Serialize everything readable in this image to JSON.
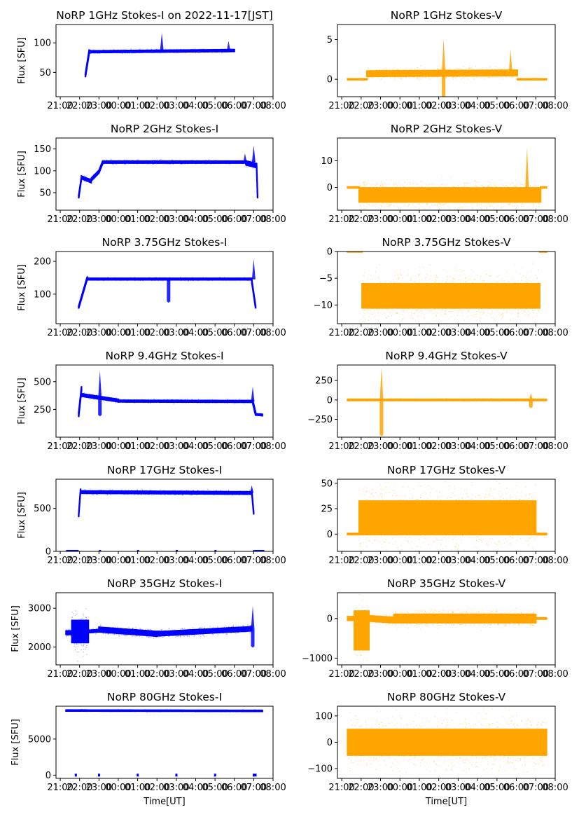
{
  "figure": {
    "x_tick_labels": [
      "21:00",
      "22:00",
      "23:00",
      "00:00",
      "01:00",
      "02:00",
      "03:00",
      "04:00",
      "05:00",
      "06:00",
      "07:00",
      "08:00"
    ],
    "x_label": "Time[UT]",
    "y_label": "Flux [SFU]",
    "colors": {
      "stokes_i": "#0000ff",
      "stokes_v": "#ffa500",
      "axes": "#000000"
    }
  },
  "chart_data": [
    {
      "type": "scatter",
      "title": "NoRP 1GHz Stokes-I on 2022-11-17[JST]",
      "ylabel": "Flux [SFU]",
      "xlabel": "",
      "color": "#0000ff",
      "xlim_hours": [
        -3.22,
        8
      ],
      "ylim": [
        9,
        131
      ],
      "yticks": [
        50,
        100
      ],
      "envelopes": [
        {
          "x0": -1.7,
          "x1": -1.5,
          "y0": 45,
          "y1": 86,
          "spread": 4
        },
        {
          "x0": -1.5,
          "x1": 6.0,
          "y0": 85,
          "y1": 87,
          "spread": 2
        }
      ],
      "spikes": [
        {
          "x": 2.25,
          "peak": 117,
          "base": 87
        },
        {
          "x": 5.7,
          "peak": 103,
          "base": 87
        }
      ]
    },
    {
      "type": "scatter",
      "title": "NoRP 1GHz Stokes-V",
      "ylabel": "",
      "xlabel": "",
      "color": "#ffa500",
      "xlim_hours": [
        -3.22,
        8
      ],
      "ylim": [
        -2.2,
        6.9
      ],
      "yticks": [
        0,
        5
      ],
      "envelopes": [
        {
          "x0": -2.7,
          "x1": -1.7,
          "y0": 0,
          "y1": 0,
          "spread": 0.08
        },
        {
          "x0": -1.7,
          "x1": 6.05,
          "y0": 0.7,
          "y1": 0.8,
          "spread": 0.45
        },
        {
          "x0": 6.05,
          "x1": 7.55,
          "y0": 0,
          "y1": 0,
          "spread": 0.08
        }
      ],
      "spikes": [
        {
          "x": 2.25,
          "peak": 5.2,
          "base": 0.8,
          "low": -2.2
        },
        {
          "x": 5.7,
          "peak": 3.8,
          "base": 0.8
        }
      ]
    },
    {
      "type": "scatter",
      "title": "NoRP 2GHz Stokes-I",
      "ylabel": "Flux [SFU]",
      "xlabel": "",
      "color": "#0000ff",
      "xlim_hours": [
        -3.22,
        8
      ],
      "ylim": [
        10,
        175
      ],
      "yticks": [
        50,
        100,
        150
      ],
      "envelopes": [
        {
          "x0": -2.05,
          "x1": -1.9,
          "y0": 40,
          "y1": 85,
          "spread": 4
        },
        {
          "x0": -1.9,
          "x1": -1.4,
          "y0": 85,
          "y1": 76,
          "spread": 4
        },
        {
          "x0": -1.4,
          "x1": -1.0,
          "y0": 80,
          "y1": 98,
          "spread": 4
        },
        {
          "x0": -1.0,
          "x1": -0.8,
          "y0": 98,
          "y1": 120,
          "spread": 4
        },
        {
          "x0": -0.8,
          "x1": 6.6,
          "y0": 120,
          "y1": 120,
          "spread": 3
        },
        {
          "x0": 6.6,
          "x1": 7.15,
          "y0": 118,
          "y1": 112,
          "spread": 6
        },
        {
          "x0": 7.15,
          "x1": 7.2,
          "y0": 110,
          "y1": 40,
          "spread": 4
        }
      ],
      "spikes": [
        {
          "x": 6.55,
          "peak": 140,
          "base": 120
        },
        {
          "x": 7.0,
          "peak": 158,
          "base": 120
        }
      ]
    },
    {
      "type": "scatter",
      "title": "NoRP 2GHz Stokes-V",
      "ylabel": "",
      "xlabel": "",
      "color": "#ffa500",
      "xlim_hours": [
        -3.22,
        8
      ],
      "ylim": [
        -8.5,
        18.5
      ],
      "yticks": [
        0,
        10
      ],
      "envelopes": [
        {
          "x0": -2.7,
          "x1": -2.1,
          "y0": 0,
          "y1": 0,
          "spread": 0.25
        },
        {
          "x0": -2.1,
          "x1": 7.25,
          "y0": -2.8,
          "y1": -2.8,
          "spread": 3.5
        },
        {
          "x0": 7.25,
          "x1": 7.55,
          "y0": 0,
          "y1": 0,
          "spread": 0.25
        }
      ],
      "spikes": [
        {
          "x": 6.55,
          "peak": 15,
          "base": 0
        }
      ]
    },
    {
      "type": "scatter",
      "title": "NoRP 3.75GHz Stokes-I",
      "ylabel": "Flux [SFU]",
      "xlabel": "",
      "color": "#0000ff",
      "xlim_hours": [
        -3.22,
        8
      ],
      "ylim": [
        10,
        230
      ],
      "yticks": [
        100,
        200
      ],
      "envelopes": [
        {
          "x0": -2.05,
          "x1": -1.6,
          "y0": 60,
          "y1": 150,
          "spread": 5
        },
        {
          "x0": -1.6,
          "x1": 6.9,
          "y0": 146,
          "y1": 146,
          "spread": 3
        },
        {
          "x0": 6.9,
          "x1": 7.1,
          "y0": 140,
          "y1": 60,
          "spread": 5
        }
      ],
      "spikes": [
        {
          "x": 2.6,
          "peak": 145,
          "base": 145,
          "low": 78
        },
        {
          "x": 7.0,
          "peak": 207,
          "base": 145
        }
      ]
    },
    {
      "type": "scatter",
      "title": "NoRP 3.75GHz Stokes-V",
      "ylabel": "",
      "xlabel": "",
      "color": "#ffa500",
      "xlim_hours": [
        -3.22,
        8
      ],
      "ylim": [
        -13.5,
        0
      ],
      "yticks": [
        -10,
        -5,
        0
      ],
      "envelopes": [
        {
          "x0": -2.7,
          "x1": -1.95,
          "y0": 0,
          "y1": 0,
          "spread": 0.12
        },
        {
          "x0": -1.95,
          "x1": 7.2,
          "y0": -8.3,
          "y1": -8.3,
          "spread": 3.0
        },
        {
          "x0": 7.2,
          "x1": 7.55,
          "y0": 0,
          "y1": 0,
          "spread": 0.12
        }
      ],
      "spikes": []
    },
    {
      "type": "scatter",
      "title": "NoRP 9.4GHz Stokes-I",
      "ylabel": "Flux [SFU]",
      "xlabel": "",
      "color": "#0000ff",
      "xlim_hours": [
        -3.22,
        8
      ],
      "ylim": [
        0,
        650
      ],
      "yticks": [
        250,
        500
      ],
      "envelopes": [
        {
          "x0": -2.05,
          "x1": -1.9,
          "y0": 200,
          "y1": 440,
          "spread": 25
        },
        {
          "x0": -1.9,
          "x1": 0.0,
          "y0": 380,
          "y1": 330,
          "spread": 15
        },
        {
          "x0": 0.0,
          "x1": 6.95,
          "y0": 325,
          "y1": 322,
          "spread": 10
        },
        {
          "x0": 6.95,
          "x1": 7.1,
          "y0": 320,
          "y1": 210,
          "spread": 20
        },
        {
          "x0": 7.1,
          "x1": 7.45,
          "y0": 205,
          "y1": 200,
          "spread": 8
        }
      ],
      "spikes": [
        {
          "x": -0.95,
          "peak": 600,
          "base": 350,
          "low": 200
        },
        {
          "x": 6.95,
          "peak": 455,
          "base": 320
        }
      ]
    },
    {
      "type": "scatter",
      "title": "NoRP 9.4GHz Stokes-V",
      "ylabel": "",
      "xlabel": "",
      "color": "#ffa500",
      "xlim_hours": [
        -3.22,
        8
      ],
      "ylim": [
        -480,
        450
      ],
      "yticks": [
        -250,
        0,
        250
      ],
      "envelopes": [
        {
          "x0": -2.7,
          "x1": 7.55,
          "y0": 0,
          "y1": 0,
          "spread": 10
        }
      ],
      "spikes": [
        {
          "x": -0.95,
          "peak": 420,
          "base": 0,
          "low": -450
        },
        {
          "x": 6.75,
          "peak": 90,
          "base": 0,
          "low": -90
        }
      ]
    },
    {
      "type": "scatter",
      "title": "NoRP 17GHz Stokes-I",
      "ylabel": "Flux [SFU]",
      "xlabel": "",
      "color": "#0000ff",
      "xlim_hours": [
        -3.22,
        8
      ],
      "ylim": [
        0,
        840
      ],
      "yticks": [
        0,
        500
      ],
      "envelopes": [
        {
          "x0": -2.05,
          "x1": -1.95,
          "y0": 410,
          "y1": 720,
          "spread": 15
        },
        {
          "x0": -1.95,
          "x1": 6.9,
          "y0": 690,
          "y1": 680,
          "spread": 18
        },
        {
          "x0": 6.9,
          "x1": 7.0,
          "y0": 700,
          "y1": 440,
          "spread": 15
        }
      ],
      "spikes": [
        {
          "x": 6.9,
          "peak": 770,
          "base": 680
        }
      ],
      "zero_markers": [
        [
          -2.7,
          -2.05
        ],
        [
          -1.0,
          -0.95
        ],
        [
          0.97,
          1.02
        ],
        [
          2.97,
          3.02
        ],
        [
          4.97,
          5.02
        ],
        [
          6.97,
          7.55
        ]
      ]
    },
    {
      "type": "scatter",
      "title": "NoRP 17GHz Stokes-V",
      "ylabel": "",
      "xlabel": "",
      "color": "#ffa500",
      "xlim_hours": [
        -3.22,
        8
      ],
      "ylim": [
        -17,
        54
      ],
      "yticks": [
        0,
        25,
        50
      ],
      "envelopes": [
        {
          "x0": -2.7,
          "x1": -2.1,
          "y0": 0,
          "y1": 0,
          "spread": 0.8
        },
        {
          "x0": -2.1,
          "x1": 7.0,
          "y0": 16,
          "y1": 16,
          "spread": 22
        },
        {
          "x0": 7.0,
          "x1": 7.55,
          "y0": 0,
          "y1": 0,
          "spread": 0.8
        }
      ],
      "spikes": []
    },
    {
      "type": "scatter",
      "title": "NoRP 35GHz Stokes-I",
      "ylabel": "Flux [SFU]",
      "xlabel": "",
      "color": "#0000ff",
      "xlim_hours": [
        -3.22,
        8
      ],
      "ylim": [
        1540,
        3400
      ],
      "yticks": [
        2000,
        3000
      ],
      "envelopes": [
        {
          "x0": -2.7,
          "x1": -2.4,
          "y0": 2370,
          "y1": 2370,
          "spread": 60
        },
        {
          "x0": -2.4,
          "x1": -1.55,
          "y0": 2400,
          "y1": 2400,
          "spread": 380
        },
        {
          "x0": -1.55,
          "x1": -1.0,
          "y0": 2400,
          "y1": 2420,
          "spread": 40
        },
        {
          "x0": -1.0,
          "x1": 2.0,
          "y0": 2450,
          "y1": 2340,
          "spread": 80
        },
        {
          "x0": 2.0,
          "x1": 6.9,
          "y0": 2340,
          "y1": 2470,
          "spread": 70
        }
      ],
      "spikes": [
        {
          "x": 6.95,
          "peak": 3060,
          "base": 2460,
          "low": 2020
        }
      ]
    },
    {
      "type": "scatter",
      "title": "NoRP 35GHz Stokes-V",
      "ylabel": "",
      "xlabel": "",
      "color": "#ffa500",
      "xlim_hours": [
        -3.22,
        8
      ],
      "ylim": [
        -1170,
        650
      ],
      "yticks": [
        -1000,
        0
      ],
      "envelopes": [
        {
          "x0": -2.7,
          "x1": -2.35,
          "y0": 0,
          "y1": 0,
          "spread": 60
        },
        {
          "x0": -2.35,
          "x1": -1.6,
          "y0": -300,
          "y1": -300,
          "spread": 650
        },
        {
          "x0": -1.6,
          "x1": -0.3,
          "y0": 0,
          "y1": -40,
          "spread": 90
        },
        {
          "x0": -0.3,
          "x1": 7.0,
          "y0": 0,
          "y1": 0,
          "spread": 140
        },
        {
          "x0": 7.0,
          "x1": 7.55,
          "y0": 0,
          "y1": 0,
          "spread": 20
        }
      ],
      "spikes": []
    },
    {
      "type": "scatter",
      "title": "NoRP 80GHz Stokes-I",
      "ylabel": "Flux [SFU]",
      "xlabel": "Time[UT]",
      "color": "#0000ff",
      "xlim_hours": [
        -3.22,
        8
      ],
      "ylim": [
        -450,
        9550
      ],
      "yticks": [
        0,
        5000
      ],
      "envelopes": [
        {
          "x0": -2.7,
          "x1": 7.45,
          "y0": 8950,
          "y1": 8900,
          "spread": 90
        }
      ],
      "spikes": [],
      "zero_markers": [
        [
          -2.25,
          -2.15
        ],
        [
          -1.05,
          -0.95
        ],
        [
          0.95,
          1.05
        ],
        [
          2.95,
          3.05
        ],
        [
          4.95,
          5.05
        ],
        [
          6.95,
          7.15
        ]
      ]
    },
    {
      "type": "scatter",
      "title": "NoRP 80GHz Stokes-V",
      "ylabel": "",
      "xlabel": "Time[UT]",
      "color": "#ffa500",
      "xlim_hours": [
        -3.22,
        8
      ],
      "ylim": [
        -137,
        137
      ],
      "yticks": [
        -100,
        0,
        100
      ],
      "envelopes": [
        {
          "x0": -2.7,
          "x1": 7.55,
          "y0": 0,
          "y1": 0,
          "spread": 65
        }
      ],
      "spikes": []
    }
  ]
}
